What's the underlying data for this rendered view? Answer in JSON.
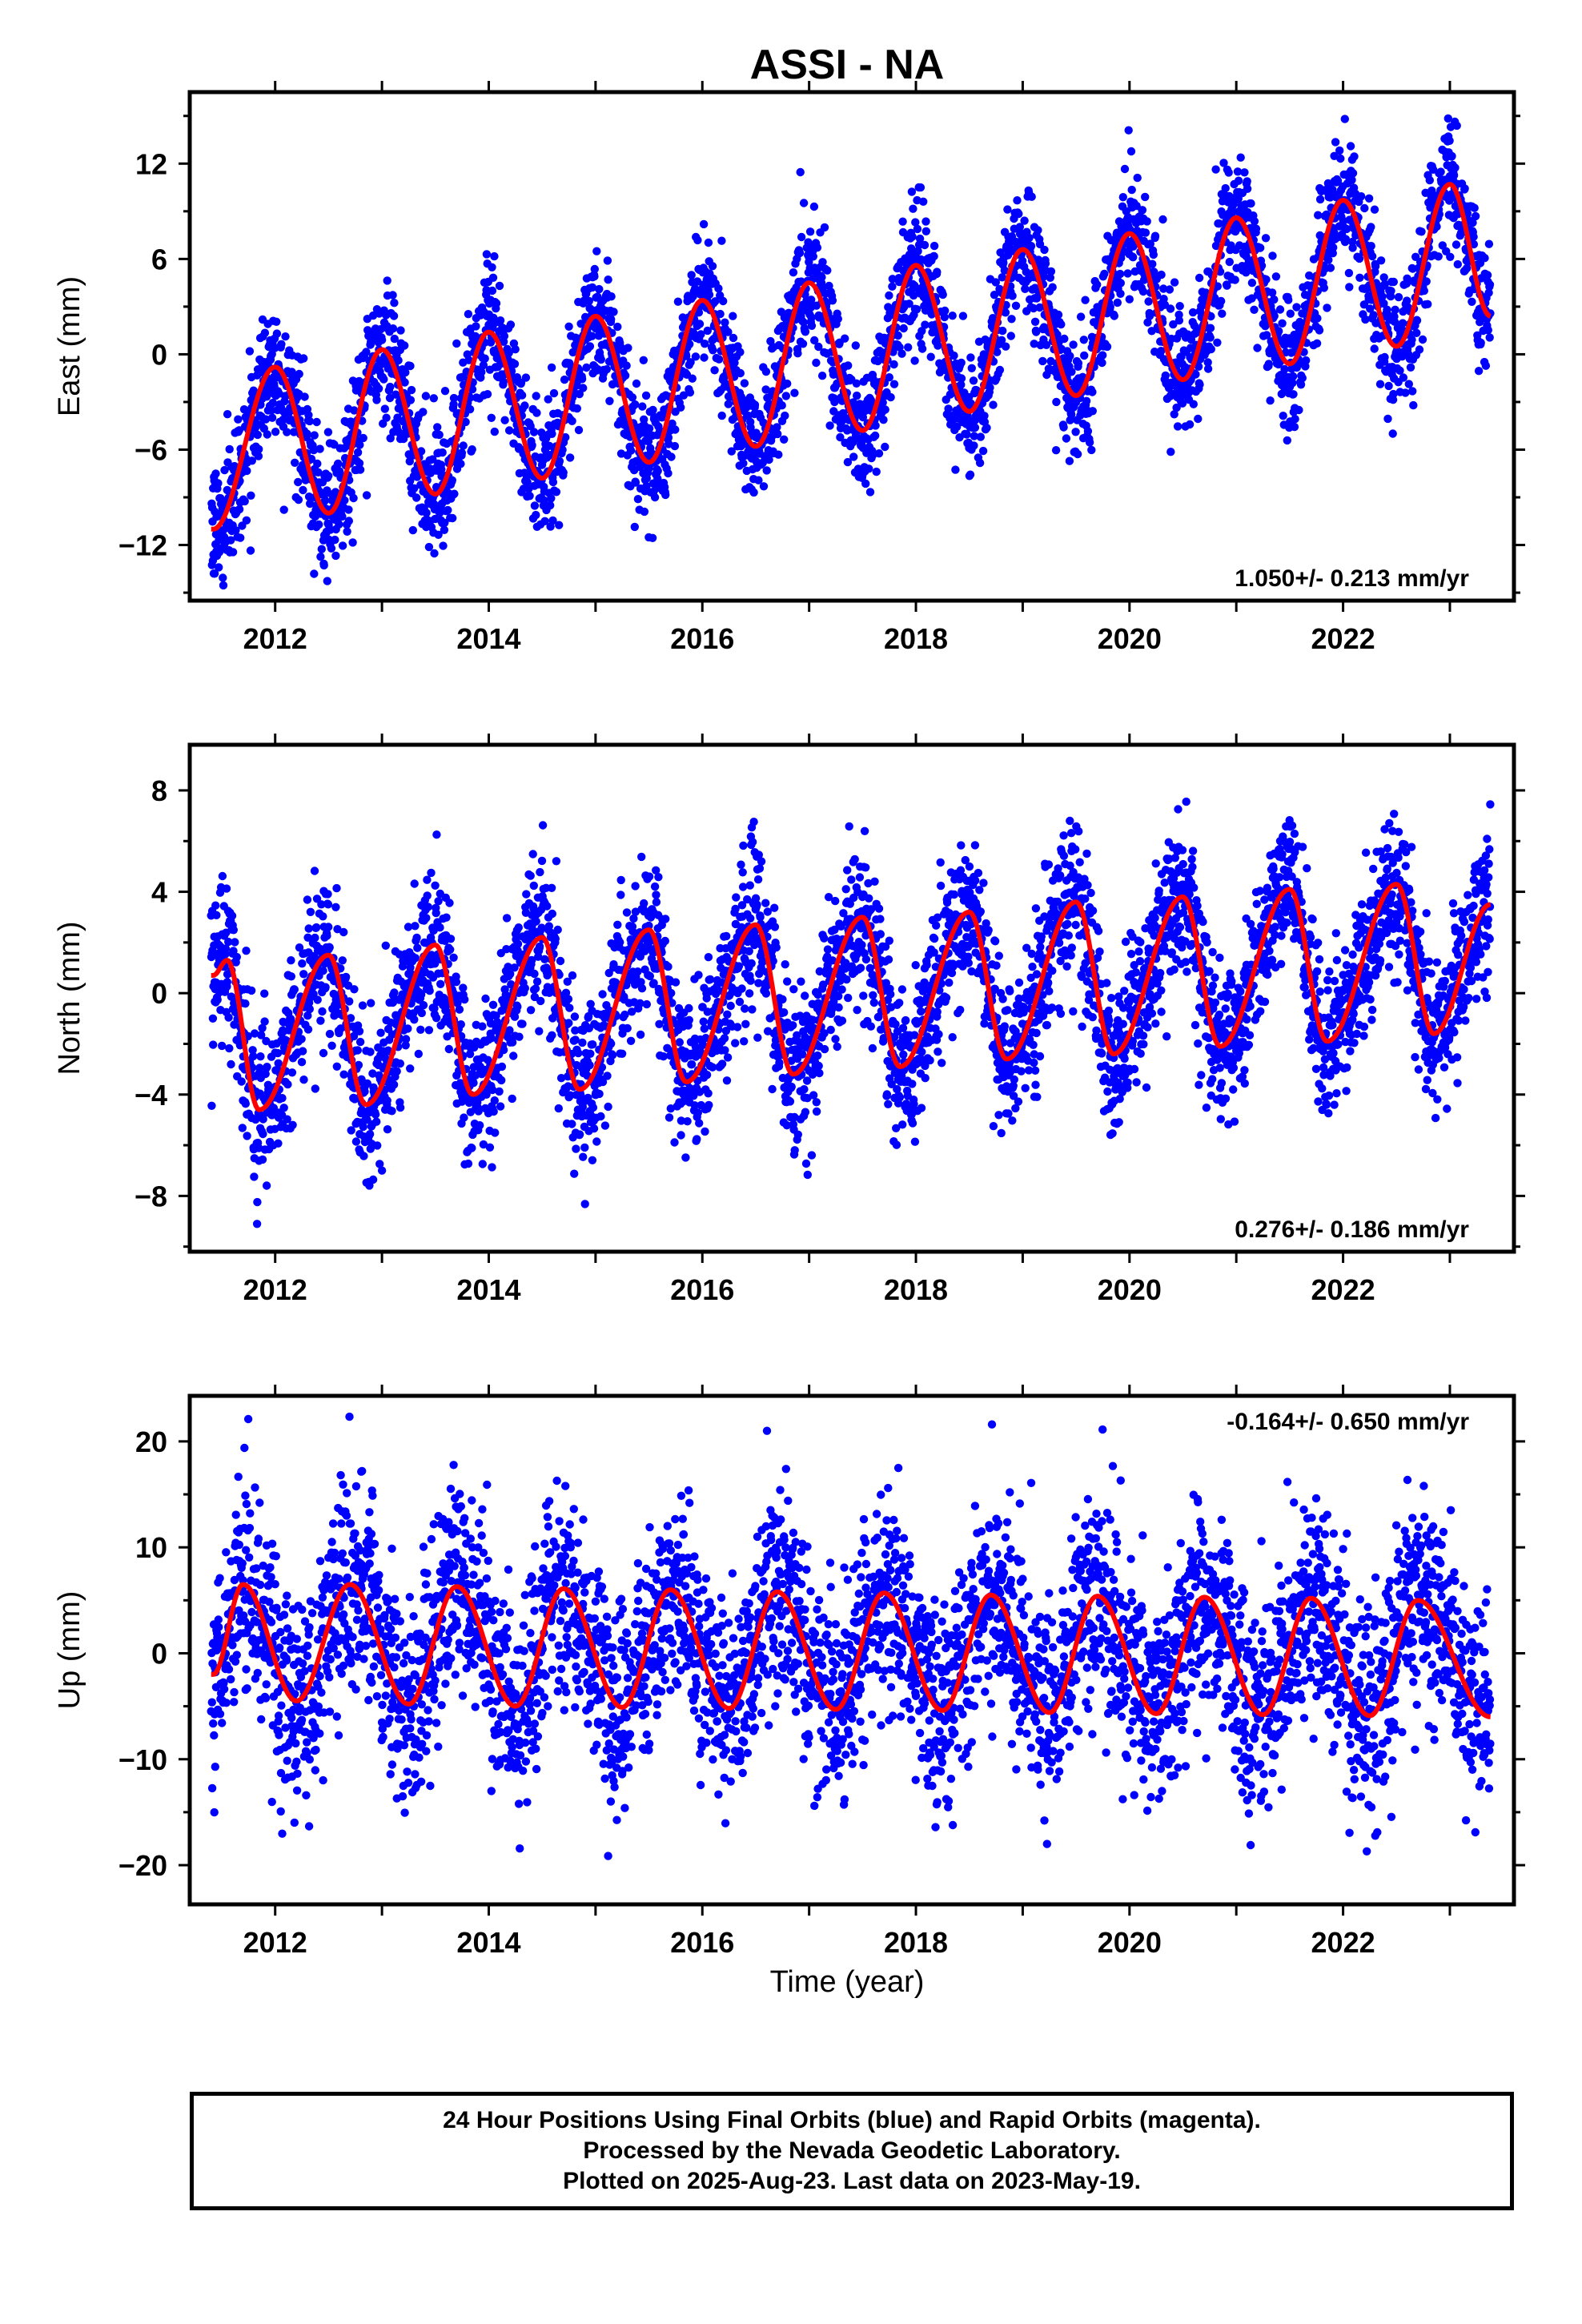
{
  "title": "ASSI - NA",
  "xlabel": "Time (year)",
  "footer": {
    "line1": "24 Hour Positions Using Final Orbits (blue) and Rapid Orbits (magenta).",
    "line2": "Processed by the Nevada Geodetic Laboratory.",
    "line3": "Plotted on 2025-Aug-23. Last data on 2023-May-19."
  },
  "colors": {
    "points": "#0000ff",
    "fit": "#ff0000",
    "frame": "#000000"
  },
  "chart_data": [
    {
      "type": "scatter",
      "component": "East",
      "ylabel": "East (mm)",
      "xlim": [
        2011.2,
        2023.6
      ],
      "ylim": [
        -15.5,
        16.5
      ],
      "xticks": [
        2012,
        2014,
        2016,
        2018,
        2020,
        2022
      ],
      "yticks": [
        -12,
        -6,
        0,
        6,
        12
      ],
      "rate_label": "1.050+/- 0.213 mm/yr",
      "data_range": [
        2011.4,
        2023.38
      ],
      "model": {
        "t0": 2011.45,
        "offset": -5.5,
        "trend": 1.05,
        "annual_amp": 5.0,
        "annual_phase": 0.0,
        "semiannual_amp": 0.0,
        "semiannual_phase": 0.0
      },
      "scatter_sigma": 2.0,
      "fit_points": [
        [
          2011.42,
          -11.0
        ],
        [
          2012.0,
          -0.8
        ],
        [
          2012.5,
          -10.0
        ],
        [
          2013.0,
          0.3
        ],
        [
          2013.5,
          -8.8
        ],
        [
          2014.0,
          1.4
        ],
        [
          2014.5,
          -7.8
        ],
        [
          2015.0,
          2.4
        ],
        [
          2015.5,
          -6.8
        ],
        [
          2016.0,
          3.4
        ],
        [
          2016.5,
          -5.8
        ],
        [
          2017.0,
          4.5
        ],
        [
          2017.5,
          -4.8
        ],
        [
          2018.0,
          5.6
        ],
        [
          2018.5,
          -3.6
        ],
        [
          2019.0,
          6.6
        ],
        [
          2019.5,
          -2.6
        ],
        [
          2020.0,
          7.6
        ],
        [
          2020.5,
          -1.6
        ],
        [
          2021.0,
          8.6
        ],
        [
          2021.5,
          -0.6
        ],
        [
          2022.0,
          9.7
        ],
        [
          2022.5,
          0.5
        ],
        [
          2023.0,
          10.7
        ],
        [
          2023.38,
          2.4
        ]
      ]
    },
    {
      "type": "scatter",
      "component": "North",
      "ylabel": "North (mm)",
      "xlim": [
        2011.2,
        2023.6
      ],
      "ylim": [
        -10.2,
        9.8
      ],
      "xticks": [
        2012,
        2014,
        2016,
        2018,
        2020,
        2022
      ],
      "yticks": [
        -8,
        -4,
        0,
        4,
        8
      ],
      "rate_label": "0.276+/- 0.186 mm/yr",
      "data_range": [
        2011.4,
        2023.38
      ],
      "model": {
        "t0": 2011.45,
        "offset": -1.2,
        "trend": 0.276,
        "annual_amp": 2.6,
        "annual_phase": 0.0,
        "semiannual_amp": 0.0,
        "semiannual_phase": 0.0
      },
      "scatter_sigma": 1.5,
      "fit_points": [
        [
          2011.42,
          0.7
        ],
        [
          2011.55,
          1.3
        ],
        [
          2011.85,
          -4.6
        ],
        [
          2012.5,
          1.5
        ],
        [
          2012.85,
          -4.4
        ],
        [
          2013.5,
          1.9
        ],
        [
          2013.85,
          -4.0
        ],
        [
          2014.5,
          2.2
        ],
        [
          2014.85,
          -3.8
        ],
        [
          2015.5,
          2.5
        ],
        [
          2015.85,
          -3.5
        ],
        [
          2016.5,
          2.7
        ],
        [
          2016.85,
          -3.2
        ],
        [
          2017.5,
          3.0
        ],
        [
          2017.85,
          -2.9
        ],
        [
          2018.5,
          3.2
        ],
        [
          2018.85,
          -2.6
        ],
        [
          2019.5,
          3.6
        ],
        [
          2019.85,
          -2.4
        ],
        [
          2020.5,
          3.8
        ],
        [
          2020.85,
          -2.1
        ],
        [
          2021.5,
          4.1
        ],
        [
          2021.85,
          -1.9
        ],
        [
          2022.5,
          4.3
        ],
        [
          2022.85,
          -1.6
        ],
        [
          2023.38,
          3.5
        ]
      ]
    },
    {
      "type": "scatter",
      "component": "Up",
      "ylabel": "Up (mm)",
      "xlim": [
        2011.2,
        2023.6
      ],
      "ylim": [
        -23.7,
        24.3
      ],
      "xticks": [
        2012,
        2014,
        2016,
        2018,
        2020,
        2022
      ],
      "yticks": [
        -20,
        -10,
        0,
        10,
        20
      ],
      "rate_label": "-0.164+/- 0.650 mm/yr",
      "data_range": [
        2011.4,
        2023.38
      ],
      "model": {
        "t0": 2011.45,
        "offset": 1.0,
        "trend": -0.164,
        "annual_amp": 5.5,
        "annual_phase": 0.0,
        "semiannual_amp": 0.0,
        "semiannual_phase": 0.0
      },
      "scatter_sigma": 5.0,
      "fit_points": [
        [
          2011.42,
          -2.0
        ],
        [
          2011.7,
          6.5
        ],
        [
          2012.2,
          -4.5
        ],
        [
          2012.7,
          6.5
        ],
        [
          2013.25,
          -4.8
        ],
        [
          2013.7,
          6.3
        ],
        [
          2014.25,
          -5.0
        ],
        [
          2014.7,
          6.1
        ],
        [
          2015.25,
          -5.1
        ],
        [
          2015.7,
          6.0
        ],
        [
          2016.25,
          -5.2
        ],
        [
          2016.7,
          5.8
        ],
        [
          2017.25,
          -5.3
        ],
        [
          2017.7,
          5.7
        ],
        [
          2018.25,
          -5.4
        ],
        [
          2018.7,
          5.5
        ],
        [
          2019.25,
          -5.6
        ],
        [
          2019.7,
          5.4
        ],
        [
          2020.25,
          -5.7
        ],
        [
          2020.7,
          5.3
        ],
        [
          2021.25,
          -5.8
        ],
        [
          2021.7,
          5.2
        ],
        [
          2022.25,
          -5.9
        ],
        [
          2022.7,
          5.0
        ],
        [
          2023.38,
          -6.0
        ]
      ]
    }
  ]
}
